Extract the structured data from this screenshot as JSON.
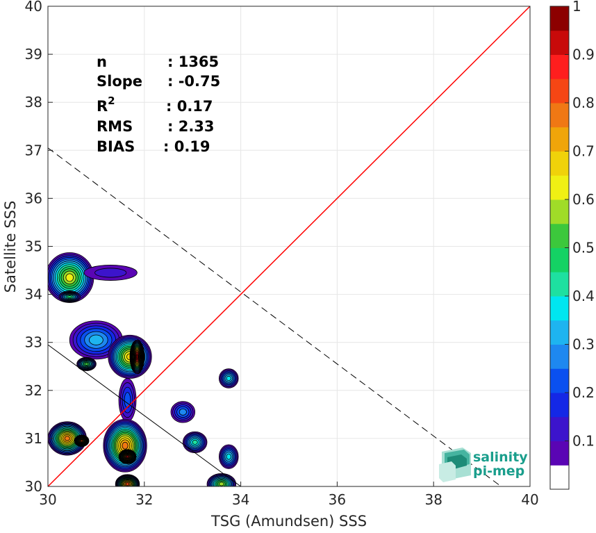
{
  "chart_data": {
    "type": "heatmap",
    "xlabel": "TSG (Amundsen) SSS",
    "ylabel": "Satellite SSS",
    "xlim": [
      30,
      40
    ],
    "ylim": [
      30,
      40
    ],
    "x_ticks": [
      "30",
      "32",
      "34",
      "36",
      "38",
      "40"
    ],
    "y_ticks": [
      "30",
      "31",
      "32",
      "33",
      "34",
      "35",
      "36",
      "37",
      "38",
      "39",
      "40"
    ],
    "grid": true,
    "stats": [
      {
        "label": "n",
        "value": ": 1365"
      },
      {
        "label": "Slope",
        "value": ": -0.75"
      },
      {
        "label": "R",
        "superscript": "2",
        "value": ": 0.17"
      },
      {
        "label": "RMS",
        "value": ": 2.33"
      },
      {
        "label": "BIAS",
        "value": ": 0.19"
      }
    ],
    "reference_lines": {
      "identity": {
        "from": [
          30,
          30
        ],
        "to": [
          40,
          40
        ],
        "color": "#ff0000"
      },
      "fit_dashed": {
        "from": [
          30,
          37.05
        ],
        "to": [
          39.4,
          30
        ],
        "color": "#000000"
      },
      "fit_solid": {
        "from": [
          30,
          32.95
        ],
        "to": [
          34,
          30
        ],
        "color": "#000000"
      }
    },
    "density_blobs": [
      {
        "x": 30.45,
        "y": 34.35,
        "rx": 0.5,
        "ry": 0.52,
        "peak": 0.58
      },
      {
        "x": 31.3,
        "y": 34.45,
        "rx": 0.55,
        "ry": 0.16,
        "peak": 0.12
      },
      {
        "x": 30.45,
        "y": 33.95,
        "rx": 0.22,
        "ry": 0.12,
        "peak": 0.45
      },
      {
        "x": 31.0,
        "y": 33.05,
        "rx": 0.55,
        "ry": 0.4,
        "peak": 0.28
      },
      {
        "x": 31.7,
        "y": 32.7,
        "rx": 0.45,
        "ry": 0.45,
        "peak": 0.65
      },
      {
        "x": 31.85,
        "y": 32.7,
        "rx": 0.15,
        "ry": 0.35,
        "peak": 0.95
      },
      {
        "x": 30.8,
        "y": 32.55,
        "rx": 0.2,
        "ry": 0.14,
        "peak": 0.5
      },
      {
        "x": 31.65,
        "y": 31.8,
        "rx": 0.18,
        "ry": 0.45,
        "peak": 0.2
      },
      {
        "x": 31.6,
        "y": 30.85,
        "rx": 0.45,
        "ry": 0.55,
        "peak": 0.75
      },
      {
        "x": 31.65,
        "y": 30.62,
        "rx": 0.18,
        "ry": 0.15,
        "peak": 0.92
      },
      {
        "x": 31.65,
        "y": 30.05,
        "rx": 0.25,
        "ry": 0.2,
        "peak": 0.8
      },
      {
        "x": 30.4,
        "y": 31.0,
        "rx": 0.4,
        "ry": 0.35,
        "peak": 0.75
      },
      {
        "x": 30.7,
        "y": 30.95,
        "rx": 0.15,
        "ry": 0.12,
        "peak": 0.8
      },
      {
        "x": 32.8,
        "y": 31.55,
        "rx": 0.25,
        "ry": 0.22,
        "peak": 0.25
      },
      {
        "x": 33.05,
        "y": 30.92,
        "rx": 0.25,
        "ry": 0.22,
        "peak": 0.4
      },
      {
        "x": 33.75,
        "y": 32.25,
        "rx": 0.2,
        "ry": 0.2,
        "peak": 0.35
      },
      {
        "x": 33.75,
        "y": 30.62,
        "rx": 0.2,
        "ry": 0.25,
        "peak": 0.35
      },
      {
        "x": 33.6,
        "y": 30.05,
        "rx": 0.3,
        "ry": 0.22,
        "peak": 0.55
      }
    ],
    "colorbar": {
      "ticks": [
        "0.1",
        "0.2",
        "0.3",
        "0.4",
        "0.5",
        "0.6",
        "0.7",
        "0.8",
        "0.9",
        "1"
      ],
      "colors": [
        "#ffffff",
        "#5a05b4",
        "#3c14cc",
        "#1428e6",
        "#0a50f0",
        "#1e88f0",
        "#1eb4f0",
        "#00e6f0",
        "#1ee0a0",
        "#14d264",
        "#3cc83c",
        "#a0dc28",
        "#f0f014",
        "#f0d20a",
        "#f0a50a",
        "#f07814",
        "#f54614",
        "#ff1e1e",
        "#c80a0a",
        "#8c0000"
      ]
    }
  },
  "logo": {
    "line1": "salinity",
    "line2": "pi-mep"
  }
}
